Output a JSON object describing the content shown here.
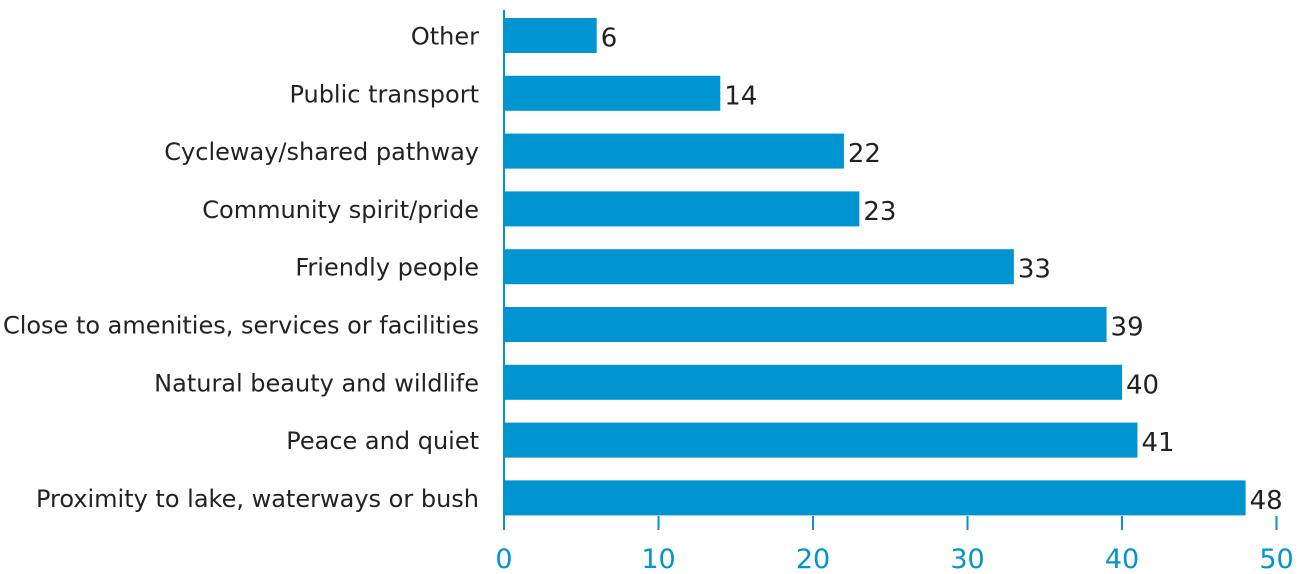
{
  "chart_data": {
    "type": "bar",
    "orientation": "horizontal",
    "categories": [
      "Other",
      "Public transport",
      "Cycleway/shared pathway",
      "Community spirit/pride",
      "Friendly people",
      "Close to amenities, services or facilities",
      "Natural beauty and wildlife ",
      "Peace and quiet",
      "Proximity to lake, waterways or bush"
    ],
    "values": [
      6,
      14,
      22,
      23,
      33,
      39,
      40,
      41,
      48
    ],
    "x_ticks": [
      "0",
      "10",
      "20",
      "30",
      "40",
      "50"
    ],
    "xlim": [
      0,
      50
    ],
    "title": "",
    "xlabel": "",
    "ylabel": "",
    "grid": false,
    "legend": "none",
    "colors": {
      "bar": "#0094d0",
      "axis": "#0094d0",
      "tick_label": "#0094d0",
      "text": "#222222"
    }
  }
}
